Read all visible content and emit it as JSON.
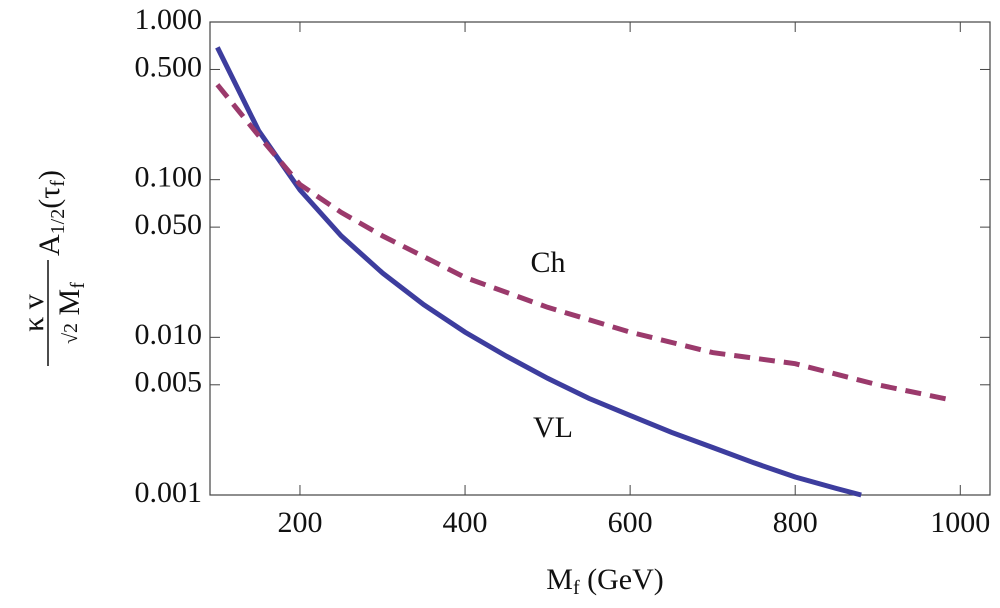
{
  "chart_data": {
    "type": "line",
    "x_label": [
      "M",
      "f",
      " (GeV)"
    ],
    "y_label": {
      "numerator": "κ v",
      "denominator": [
        "√2",
        " M",
        "f"
      ],
      "factor": [
        "A",
        "1/2",
        "(τ",
        "f",
        ")"
      ]
    },
    "y_scale": "log",
    "xlim": [
      91,
      1036
    ],
    "ylim": [
      0.001,
      1
    ],
    "xticks": [
      200,
      400,
      600,
      800,
      1000
    ],
    "yticks": [
      {
        "value": 1,
        "label": "1.000"
      },
      {
        "value": 0.5,
        "label": "0.500"
      },
      {
        "value": 0.1,
        "label": "0.100"
      },
      {
        "value": 0.05,
        "label": "0.050"
      },
      {
        "value": 0.01,
        "label": "0.010"
      },
      {
        "value": 0.005,
        "label": "0.005"
      },
      {
        "value": 0.001,
        "label": "0.001"
      }
    ],
    "series": [
      {
        "name": "VL",
        "color": "#3d3d9e",
        "dashed": false,
        "x": [
          100,
          150,
          200,
          250,
          300,
          350,
          400,
          450,
          500,
          550,
          600,
          650,
          700,
          750,
          800,
          850,
          880
        ],
        "values": [
          0.69,
          0.204,
          0.086,
          0.044,
          0.0256,
          0.0161,
          0.0108,
          0.0076,
          0.0055,
          0.0041,
          0.0032,
          0.0025,
          0.002,
          0.0016,
          0.0013,
          0.0011,
          0.001
        ]
      },
      {
        "name": "Ch",
        "color": "#9b3a6c",
        "dashed": true,
        "x": [
          100,
          150,
          200,
          250,
          300,
          400,
          500,
          600,
          700,
          800,
          900,
          990
        ],
        "values": [
          0.4,
          0.19,
          0.093,
          0.062,
          0.044,
          0.024,
          0.0155,
          0.0108,
          0.008,
          0.0068,
          0.005,
          0.004
        ]
      }
    ]
  }
}
